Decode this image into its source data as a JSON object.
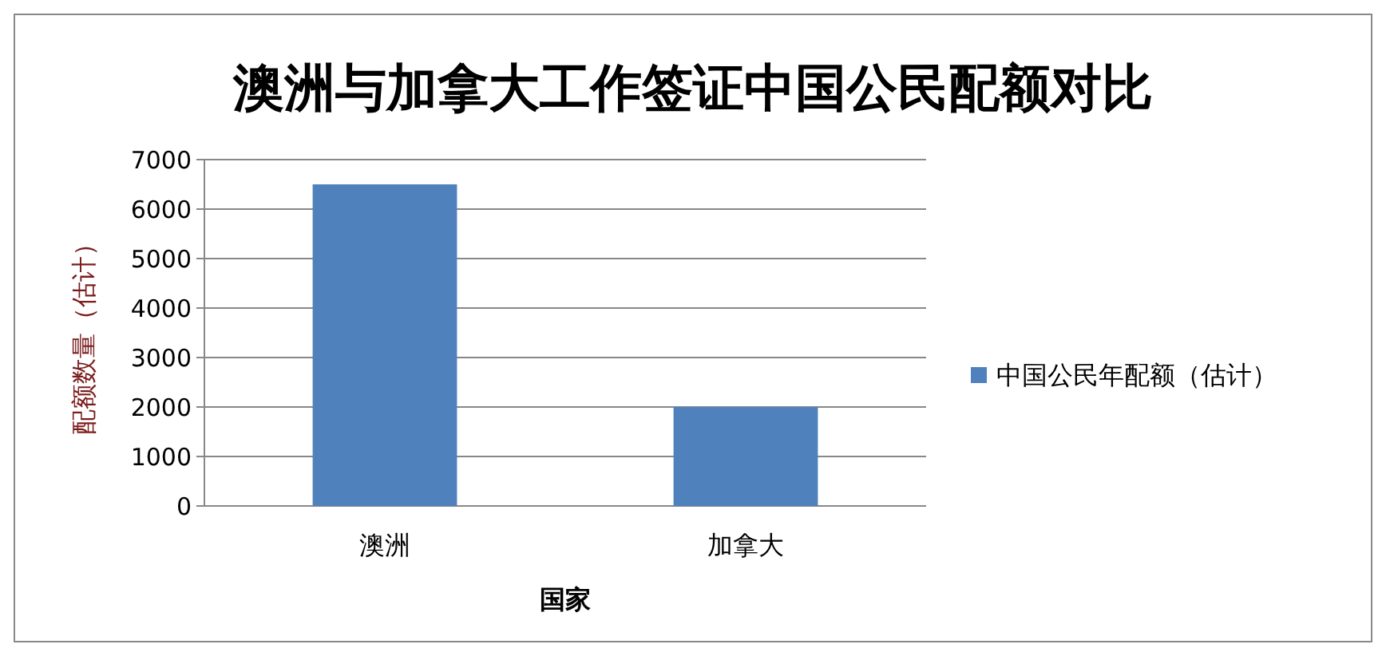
{
  "chart_data": {
    "type": "bar",
    "title": "澳洲与加拿大工作签证中国公民配额对比",
    "xlabel": "国家",
    "ylabel": "配额数量（估计）",
    "categories": [
      "澳洲",
      "加拿大"
    ],
    "series": [
      {
        "name": "中国公民年配额（估计）",
        "color": "#4f81bd",
        "values": [
          6500,
          2000
        ]
      }
    ],
    "ylim": [
      0,
      7000
    ],
    "yticks": [
      0,
      1000,
      2000,
      3000,
      4000,
      5000,
      6000,
      7000
    ],
    "grid": "y",
    "legend": "right"
  }
}
